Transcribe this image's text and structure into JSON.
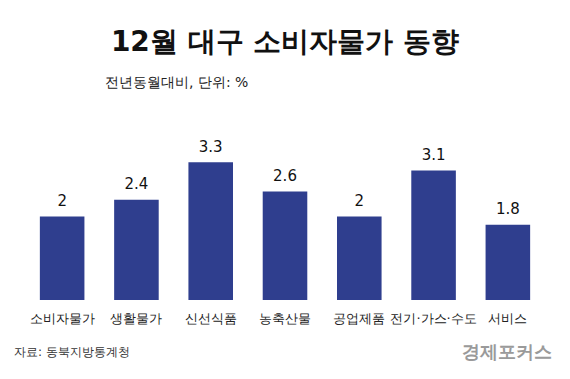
{
  "chart_data": {
    "type": "bar",
    "title": "12월 대구 소비자물가 동향",
    "subtitle": "전년동월대비, 단위: %",
    "categories": [
      "소비자물가",
      "생활물가",
      "신선식품",
      "농축산물",
      "공업제품",
      "전기·가스·수도",
      "서비스"
    ],
    "values": [
      2,
      2.4,
      3.3,
      2.6,
      2,
      3.1,
      1.8
    ],
    "color": "#2f3e8e",
    "ylim": [
      0,
      4
    ],
    "grid": false,
    "data_labels": true,
    "tick_labels": "x",
    "source": "자료: 동북지방통계청",
    "credit": "경제포커스"
  }
}
